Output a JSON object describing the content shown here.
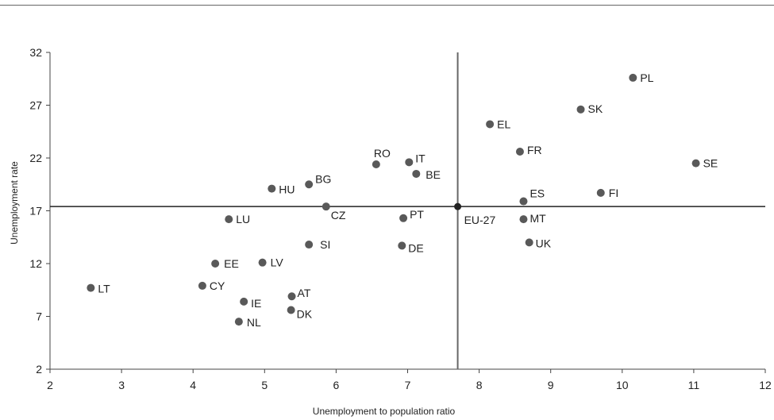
{
  "chart_data": {
    "type": "scatter",
    "title": "",
    "xlabel": "Unemployment to population ratio",
    "ylabel": "Unemployment rate",
    "xlim": [
      2,
      12
    ],
    "ylim": [
      2,
      32
    ],
    "xticks": [
      2,
      3,
      4,
      5,
      6,
      7,
      8,
      9,
      10,
      11,
      12
    ],
    "yticks": [
      2,
      7,
      12,
      17,
      22,
      27,
      32
    ],
    "grid": false,
    "reference_lines": {
      "x": 7.7,
      "y": 17.4
    },
    "colors": {
      "points": "#595959",
      "reference": "#666666",
      "axis": "#444444"
    },
    "points": [
      {
        "label": "PL",
        "x": 10.15,
        "y": 29.6
      },
      {
        "label": "SK",
        "x": 9.42,
        "y": 26.6
      },
      {
        "label": "EL",
        "x": 8.15,
        "y": 25.2
      },
      {
        "label": "FR",
        "x": 8.57,
        "y": 22.6
      },
      {
        "label": "SE",
        "x": 11.03,
        "y": 21.5
      },
      {
        "label": "IT",
        "x": 7.02,
        "y": 21.6
      },
      {
        "label": "RO",
        "x": 6.56,
        "y": 21.4
      },
      {
        "label": "BE",
        "x": 7.12,
        "y": 20.5
      },
      {
        "label": "BG",
        "x": 5.62,
        "y": 19.5
      },
      {
        "label": "HU",
        "x": 5.1,
        "y": 19.1
      },
      {
        "label": "FI",
        "x": 9.7,
        "y": 18.7
      },
      {
        "label": "ES",
        "x": 8.62,
        "y": 17.9
      },
      {
        "label": "EU-27",
        "x": 7.7,
        "y": 17.4
      },
      {
        "label": "CZ",
        "x": 5.86,
        "y": 17.4
      },
      {
        "label": "LU",
        "x": 4.5,
        "y": 16.2
      },
      {
        "label": "PT",
        "x": 6.94,
        "y": 16.3
      },
      {
        "label": "MT",
        "x": 8.62,
        "y": 16.2
      },
      {
        "label": "UK",
        "x": 8.7,
        "y": 14.0
      },
      {
        "label": "SI",
        "x": 5.62,
        "y": 13.8
      },
      {
        "label": "DE",
        "x": 6.92,
        "y": 13.7
      },
      {
        "label": "EE",
        "x": 4.31,
        "y": 12.0
      },
      {
        "label": "LV",
        "x": 4.97,
        "y": 12.1
      },
      {
        "label": "CY",
        "x": 4.13,
        "y": 9.9
      },
      {
        "label": "LT",
        "x": 2.57,
        "y": 9.7
      },
      {
        "label": "AT",
        "x": 5.38,
        "y": 8.9
      },
      {
        "label": "IE",
        "x": 4.71,
        "y": 8.4
      },
      {
        "label": "DK",
        "x": 5.37,
        "y": 7.6
      },
      {
        "label": "NL",
        "x": 4.64,
        "y": 6.5
      }
    ]
  }
}
